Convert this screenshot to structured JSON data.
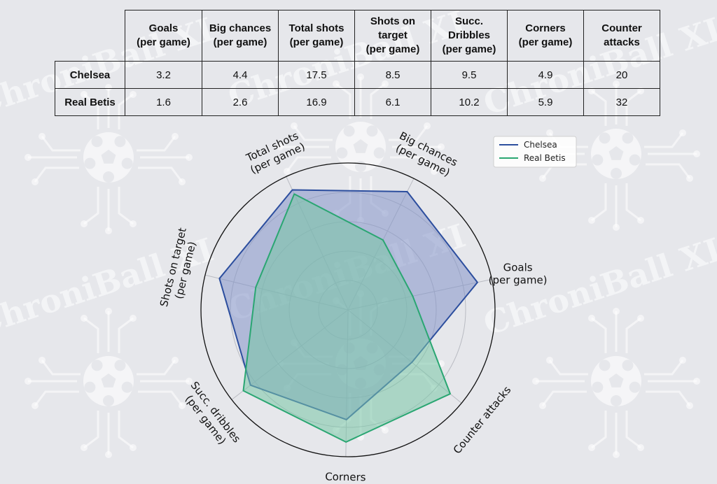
{
  "watermark": {
    "text": "ChroniBall XI"
  },
  "table": {
    "columns": [
      "Goals\n(per game)",
      "Big chances\n(per game)",
      "Total shots\n(per game)",
      "Shots on\ntarget\n(per game)",
      "Succ.\nDribbles\n(per game)",
      "Corners\n(per game)",
      "Counter\nattacks"
    ],
    "rows": [
      {
        "team": "Chelsea",
        "values": [
          "3.2",
          "4.4",
          "17.5",
          "8.5",
          "9.5",
          "4.9",
          "20"
        ]
      },
      {
        "team": "Real Betis",
        "values": [
          "1.6",
          "2.6",
          "16.9",
          "6.1",
          "10.2",
          "5.9",
          "32"
        ]
      }
    ]
  },
  "chart_data": {
    "type": "radar",
    "axes": [
      "Goals\n(per game)",
      "Big chances\n(per game)",
      "Total shots\n(per game)",
      "Shots on target\n(per game)",
      "Succ. dribbles\n(per game)",
      "Corners\n(per game)",
      "Counter attacks"
    ],
    "series": [
      {
        "name": "Chelsea",
        "color": "#2c4e9e",
        "fill": "#8494c8",
        "values": [
          3.2,
          4.4,
          17.5,
          8.5,
          9.5,
          4.9,
          20
        ]
      },
      {
        "name": "Real Betis",
        "color": "#2aa672",
        "fill": "#79c7a6",
        "values": [
          1.6,
          2.6,
          16.9,
          6.1,
          10.2,
          5.9,
          32
        ]
      }
    ],
    "grid": true,
    "legend": "top-right"
  }
}
